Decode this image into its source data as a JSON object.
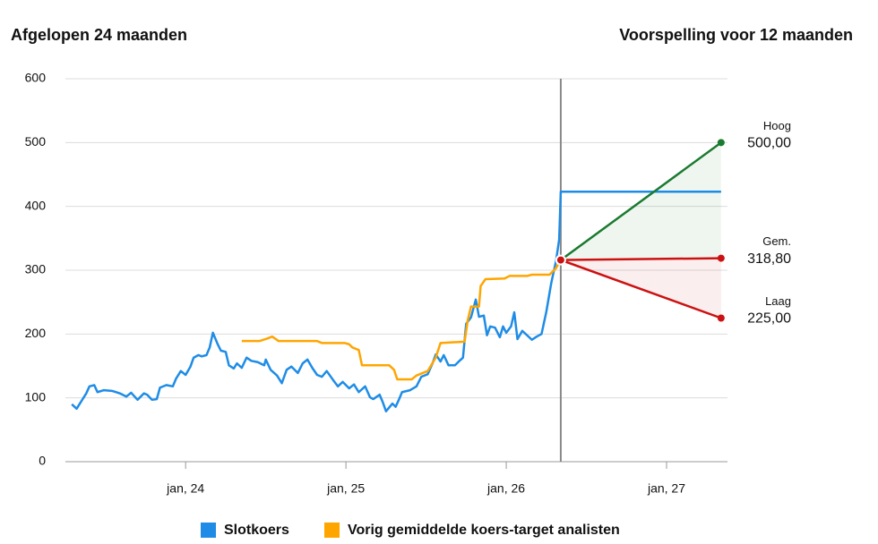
{
  "chart_data": {
    "type": "line",
    "title": "Afgelopen 24 maanden",
    "subtitle": "Voorspelling voor 12 maanden",
    "xlim": [
      2023.25,
      2027.38
    ],
    "xticks": [
      {
        "value": 2024,
        "label": "jan, 24"
      },
      {
        "value": 2025,
        "label": "jan, 25"
      },
      {
        "value": 2026,
        "label": "jan, 26"
      },
      {
        "value": 2027,
        "label": "jan, 27"
      }
    ],
    "ylim": [
      0,
      600
    ],
    "yticks": [
      0,
      100,
      200,
      300,
      400,
      500,
      600
    ],
    "grid": true,
    "series": [
      {
        "name": "Slotkoers",
        "color": "#1e8ce6",
        "x": [
          2023.29,
          2023.32,
          2023.35,
          2023.38,
          2023.4,
          2023.43,
          2023.45,
          2023.49,
          2023.54,
          2023.59,
          2023.63,
          2023.66,
          2023.7,
          2023.74,
          2023.76,
          2023.79,
          2023.82,
          2023.84,
          2023.88,
          2023.92,
          2023.94,
          2023.97,
          2024.0,
          2024.03,
          2024.05,
          2024.08,
          2024.1,
          2024.13,
          2024.15,
          2024.17,
          2024.2,
          2024.22,
          2024.25,
          2024.27,
          2024.3,
          2024.32,
          2024.35,
          2024.38,
          2024.41,
          2024.45,
          2024.49,
          2024.5,
          2024.53,
          2024.57,
          2024.6,
          2024.63,
          2024.66,
          2024.7,
          2024.73,
          2024.76,
          2024.79,
          2024.82,
          2024.85,
          2024.88,
          2024.92,
          2024.95,
          2024.98,
          2025.02,
          2025.05,
          2025.08,
          2025.12,
          2025.15,
          2025.17,
          2025.21,
          2025.23,
          2025.25,
          2025.29,
          2025.31,
          2025.33,
          2025.35,
          2025.4,
          2025.44,
          2025.47,
          2025.51,
          2025.54,
          2025.56,
          2025.59,
          2025.61,
          2025.64,
          2025.68,
          2025.7,
          2025.73,
          2025.75,
          2025.78,
          2025.81,
          2025.83,
          2025.86,
          2025.88,
          2025.9,
          2025.93,
          2025.96,
          2025.98,
          2026.0,
          2026.03,
          2026.05,
          2026.07,
          2026.1,
          2026.13,
          2026.16,
          2026.19,
          2026.22,
          2026.25,
          2026.28,
          2026.31,
          2026.33,
          2026.34,
          2027.34
        ],
        "values": [
          90,
          83,
          95,
          107,
          118,
          120,
          109,
          112,
          111,
          107,
          102,
          108,
          97,
          107,
          105,
          97,
          98,
          116,
          120,
          118,
          130,
          142,
          136,
          149,
          163,
          167,
          165,
          167,
          179,
          202,
          184,
          174,
          172,
          151,
          146,
          154,
          147,
          163,
          158,
          156,
          151,
          160,
          144,
          135,
          123,
          144,
          149,
          139,
          154,
          160,
          147,
          136,
          133,
          142,
          128,
          118,
          125,
          115,
          121,
          109,
          118,
          101,
          98,
          105,
          93,
          79,
          91,
          86,
          97,
          109,
          112,
          118,
          133,
          137,
          154,
          168,
          157,
          167,
          151,
          151,
          156,
          163,
          216,
          226,
          254,
          227,
          229,
          198,
          212,
          210,
          195,
          212,
          202,
          212,
          234,
          192,
          205,
          198,
          191,
          196,
          200,
          235,
          279,
          314,
          348,
          423,
          423
        ]
      },
      {
        "name": "Vorig gemiddelde koers-target analisten",
        "color": "#ffa500",
        "x": [
          2024.35,
          2024.46,
          2024.51,
          2024.54,
          2024.58,
          2024.82,
          2024.85,
          2024.99,
          2025.02,
          2025.04,
          2025.08,
          2025.1,
          2025.27,
          2025.3,
          2025.32,
          2025.41,
          2025.44,
          2025.51,
          2025.56,
          2025.59,
          2025.74,
          2025.76,
          2025.78,
          2025.83,
          2025.84,
          2025.87,
          2025.99,
          2026.02,
          2026.13,
          2026.16,
          2026.27,
          2026.31,
          2026.34
        ],
        "values": [
          189,
          189,
          193,
          196,
          189,
          189,
          186,
          186,
          184,
          179,
          175,
          151,
          151,
          144,
          129,
          129,
          135,
          142,
          163,
          186,
          188,
          222,
          243,
          243,
          275,
          286,
          287,
          291,
          291,
          293,
          293,
          303,
          317
        ]
      }
    ],
    "forecast": {
      "start_x": 2026.34,
      "start_value": 316,
      "end_x": 2027.34,
      "targets": [
        {
          "name": "Hoog",
          "color": "#1a7a30",
          "value": 500,
          "value_label": "500,00"
        },
        {
          "name": "Gem.",
          "color": "#cc1111",
          "value": 318.8,
          "value_label": "318,80"
        },
        {
          "name": "Laag",
          "color": "#cc1111",
          "value": 225,
          "value_label": "225,00"
        }
      ]
    }
  }
}
